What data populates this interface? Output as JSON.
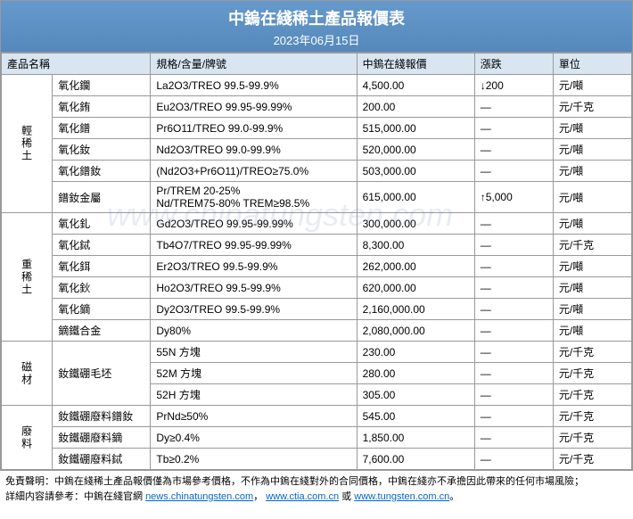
{
  "header": {
    "title": "中鎢在綫稀土產品報價表",
    "date": "2023年06月15日"
  },
  "columns": {
    "name": "產品名稱",
    "spec": "規格/含量/牌號",
    "price": "中鎢在綫報價",
    "change": "漲跌",
    "unit": "單位"
  },
  "groups": [
    {
      "label": "輕稀土",
      "rows": [
        {
          "name": "氧化鑭",
          "spec": "La2O3/TREO 99.5-99.9%",
          "price": "4,500.00",
          "change": "↓200",
          "unit": "元/噸"
        },
        {
          "name": "氧化銪",
          "spec": "Eu2O3/TREO 99.95-99.99%",
          "price": "200.00",
          "change": "—",
          "unit": "元/千克"
        },
        {
          "name": "氧化鐠",
          "spec": "Pr6O11/TREO 99.0-99.9%",
          "price": "515,000.00",
          "change": "—",
          "unit": "元/噸"
        },
        {
          "name": "氧化釹",
          "spec": "Nd2O3/TREO 99.0-99.9%",
          "price": "520,000.00",
          "change": "—",
          "unit": "元/噸"
        },
        {
          "name": "氧化鐠釹",
          "spec": "(Nd2O3+Pr6O11)/TREO≥75.0%",
          "price": "503,000.00",
          "change": "—",
          "unit": "元/噸"
        },
        {
          "name": "鐠釹金屬",
          "spec": "Pr/TREM 20-25%\nNd/TREM75-80% TREM≥98.5%",
          "price": "615,000.00",
          "change": "↑5,000",
          "unit": "元/噸"
        }
      ]
    },
    {
      "label": "重稀土",
      "rows": [
        {
          "name": "氧化釓",
          "spec": "Gd2O3/TREO 99.95-99.99%",
          "price": "300,000.00",
          "change": "—",
          "unit": "元/噸"
        },
        {
          "name": "氧化鋱",
          "spec": "Tb4O7/TREO 99.95-99.99%",
          "price": "8,300.00",
          "change": "—",
          "unit": "元/千克"
        },
        {
          "name": "氧化鉺",
          "spec": "Er2O3/TREO 99.5-99.9%",
          "price": "262,000.00",
          "change": "—",
          "unit": "元/噸"
        },
        {
          "name": "氧化鈥",
          "spec": "Ho2O3/TREO 99.5-99.9%",
          "price": "620,000.00",
          "change": "—",
          "unit": "元/噸"
        },
        {
          "name": "氧化鏑",
          "spec": "Dy2O3/TREO 99.5-99.9%",
          "price": "2,160,000.00",
          "change": "—",
          "unit": "元/噸"
        },
        {
          "name": "鏑鐵合金",
          "spec": "Dy80%",
          "price": "2,080,000.00",
          "change": "—",
          "unit": "元/噸"
        }
      ]
    },
    {
      "label": "磁材",
      "rows": [
        {
          "name": "釹鐵硼毛坯",
          "spec": "55N 方塊",
          "price": "230.00",
          "change": "—",
          "unit": "元/千克",
          "rowspan": 3
        },
        {
          "name": "",
          "spec": "52M 方塊",
          "price": "280.00",
          "change": "—",
          "unit": "元/千克"
        },
        {
          "name": "",
          "spec": "52H 方塊",
          "price": "305.00",
          "change": "—",
          "unit": "元/千克"
        }
      ]
    },
    {
      "label": "廢料",
      "rows": [
        {
          "name": "釹鐵硼廢料鐠釹",
          "spec": "PrNd≥50%",
          "price": "545.00",
          "change": "—",
          "unit": "元/千克"
        },
        {
          "name": "釹鐵硼廢料鏑",
          "spec": "Dy≥0.4%",
          "price": "1,850.00",
          "change": "—",
          "unit": "元/千克"
        },
        {
          "name": "釹鐵硼廢料鋱",
          "spec": "Tb≥0.2%",
          "price": "7,600.00",
          "change": "—",
          "unit": "元/千克"
        }
      ]
    }
  ],
  "footer": {
    "line1": "免責聲明：中鎢在綫稀土產品報價僅為市場參考價格，不作為中鎢在綫對外的合同價格，中鎢在綫亦不承擔因此帶來的任何市場風險；",
    "line2_prefix": "詳細内容請參考：中鎢在綫官網 ",
    "link1": "news.chinatungsten.com",
    "sep1": "，",
    "link2": "www.ctia.com.cn",
    "sep2": " 或 ",
    "link3": "www.tungsten.com.cn",
    "suffix": "。"
  },
  "watermark": "www.chinatungsten.com"
}
